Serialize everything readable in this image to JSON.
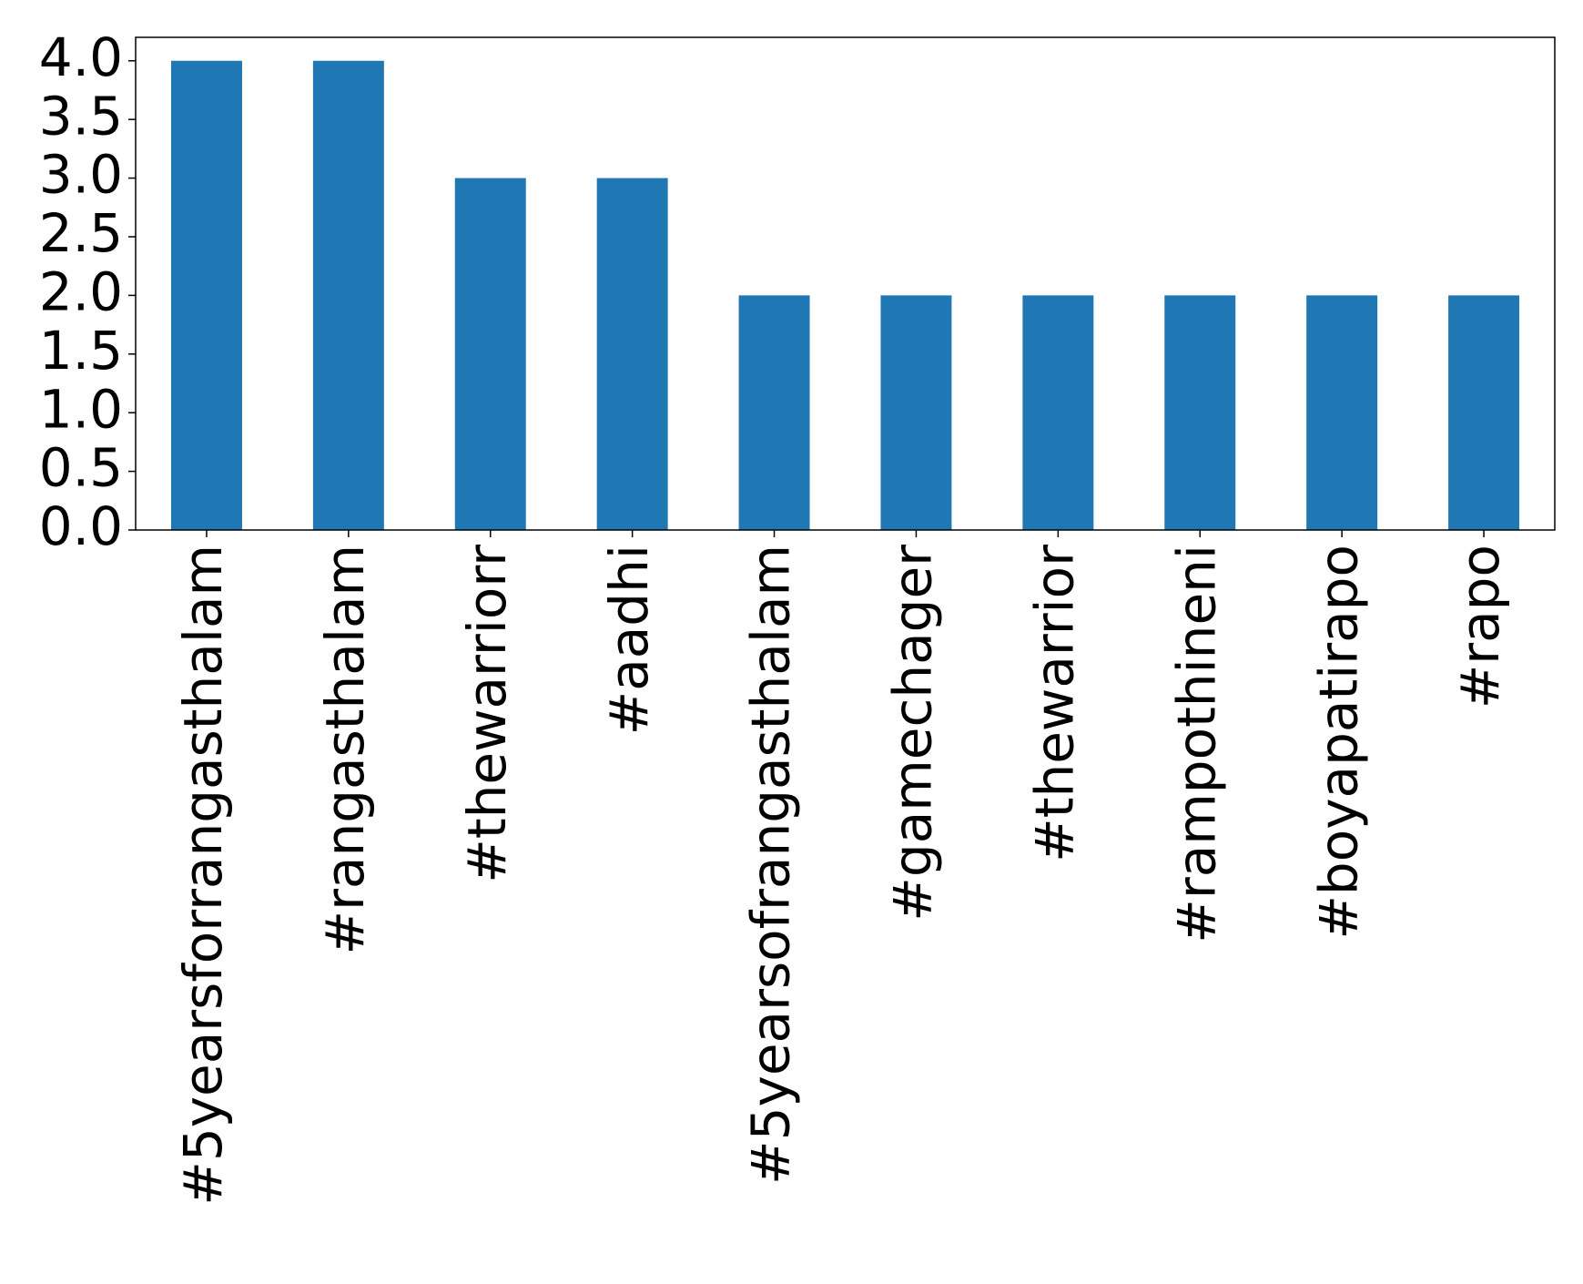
{
  "chart_data": {
    "type": "bar",
    "categories": [
      "#5yearsforrangasthalam",
      "#rangasthalam",
      "#thewarriorr",
      "#aadhi",
      "#5yearsofrangasthalam",
      "#gamechager",
      "#thewarrior",
      "#rampothineni",
      "#boyapatirapo",
      "#rapo"
    ],
    "values": [
      4,
      4,
      3,
      3,
      2,
      2,
      2,
      2,
      2,
      2
    ],
    "color": "#1f77b4",
    "ylim": [
      0,
      4.2
    ],
    "yticks": [
      {
        "value": 0,
        "label": "0.0"
      },
      {
        "value": 0.5,
        "label": "0.5"
      },
      {
        "value": 1,
        "label": "1.0"
      },
      {
        "value": 1.5,
        "label": "1.5"
      },
      {
        "value": 2,
        "label": "2.0"
      },
      {
        "value": 2.5,
        "label": "2.5"
      },
      {
        "value": 3,
        "label": "3.0"
      },
      {
        "value": 3.5,
        "label": "3.5"
      },
      {
        "value": 4,
        "label": "4.0"
      }
    ],
    "grid": false
  }
}
